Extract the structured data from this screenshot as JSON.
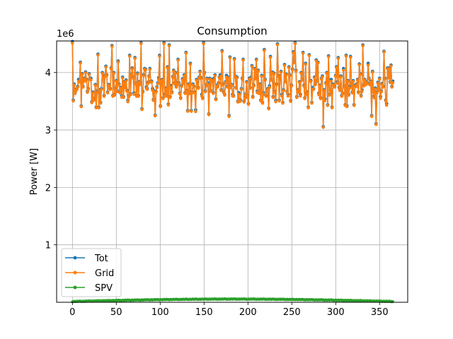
{
  "chart_data": {
    "type": "line",
    "title": "Consumption",
    "xlabel": "",
    "ylabel": "Power [W]",
    "y_offset_label": "1e6",
    "xlim": [
      -18,
      382
    ],
    "ylim": [
      0,
      4550000
    ],
    "x_ticks": [
      0,
      50,
      100,
      150,
      200,
      250,
      300,
      350
    ],
    "y_ticks": [
      1000000,
      2000000,
      3000000,
      4000000
    ],
    "y_tick_labels": [
      "1",
      "2",
      "3",
      "4"
    ],
    "grid": true,
    "legend_position": "lower-left",
    "x_start": 0,
    "x_end": 365,
    "series": [
      {
        "name": "Tot",
        "color": "#1f77b4",
        "values": [
          4540000,
          3520000,
          3800000,
          3650000,
          3700000,
          3720000,
          3760000,
          3880000,
          3850000,
          4180000,
          3420000,
          3980000,
          3760000,
          3900000,
          3880000,
          4010000,
          3880000,
          3670000,
          3720000,
          3980000,
          3900000,
          3900000,
          3490000,
          3660000,
          3530000,
          3540000,
          3790000,
          3400000,
          3680000,
          4320000,
          3400000,
          3700000,
          3480000,
          3720000,
          4000000,
          3930000,
          3600000,
          3950000,
          4110000,
          3960000,
          3660000,
          3790000,
          3780000,
          3720000,
          4080000,
          4470000,
          3600000,
          4000000,
          3620000,
          3720000,
          3860000,
          3680000,
          4200000,
          3800000,
          3660000,
          3740000,
          3600000,
          3920000,
          3580000,
          3840000,
          3750000,
          3870000,
          3690000,
          3520000,
          3590000,
          4300000,
          3630000,
          3970000,
          4080000,
          3920000,
          3650000,
          4260000,
          3820000,
          3600000,
          3990000,
          3600000,
          3840000,
          3820000,
          4520000,
          3370000,
          3670000,
          3960000,
          4070000,
          4060000,
          3750000,
          3720000,
          3830000,
          3940000,
          4070000,
          3850000,
          3850000,
          3720000,
          3530000,
          3680000,
          3260000,
          3670000,
          3750000,
          3820000,
          3910000,
          4300000,
          3420000,
          3860000,
          3880000,
          3560000,
          4520000,
          3620000,
          3730000,
          3600000,
          4100000,
          3450000,
          4480000,
          3580000,
          3770000,
          3660000,
          3930000,
          4040000,
          3820000,
          4000000,
          3760000,
          3820000,
          4230000,
          3820000,
          3640000,
          3560000,
          3770000,
          3890000,
          3840000,
          3960000,
          3650000,
          4350000,
          3690000,
          3340000,
          3800000,
          3660000,
          4160000,
          3340000,
          3660000,
          3800000,
          3760000,
          3660000,
          3350000,
          3880000,
          3820000,
          3740000,
          3920000,
          4020000,
          3910000,
          3620000,
          3560000,
          4520000,
          4000000,
          3680000,
          3780000,
          3900000,
          3820000,
          3280000,
          3900000,
          3690000,
          3880000,
          3860000,
          3650000,
          3900000,
          3960000,
          3540000,
          3780000,
          3760000,
          3820000,
          3920000,
          3960000,
          3700000,
          4380000,
          3800000,
          3660000,
          3620000,
          3840000,
          3950000,
          3760000,
          3920000,
          3250000,
          4270000,
          3750000,
          3790000,
          3620000,
          3600000,
          4240000,
          3940000,
          3740000,
          3920000,
          3500000,
          3650000,
          3510000,
          3520000,
          3720000,
          3900000,
          4230000,
          3500000,
          3580000,
          3620000,
          3840000,
          3580000,
          3460000,
          3900000,
          3740000,
          3920000,
          4120000,
          3580000,
          3780000,
          4070000,
          3900000,
          4230000,
          3680000,
          4040000,
          3650000,
          3800000,
          3520000,
          3950000,
          3480000,
          3650000,
          4400000,
          3880000,
          3600000,
          3700000,
          3720000,
          3380000,
          3770000,
          4280000,
          3880000,
          4010000,
          3580000,
          3990000,
          3670000,
          3520000,
          3800000,
          4500000,
          3950000,
          3520000,
          3900000,
          4020000,
          3620000,
          3480000,
          3700000,
          4140000,
          3850000,
          3970000,
          3670000,
          3620000,
          4100000,
          3960000,
          3510000,
          3780000,
          4060000,
          4360000,
          4200000,
          4520000,
          4040000,
          3580000,
          3700000,
          3670000,
          3840000,
          3620000,
          4000000,
          3880000,
          4350000,
          3780000,
          3560000,
          4160000,
          3640000,
          3660000,
          3400000,
          4310000,
          3860000,
          3860000,
          3480000,
          3740000,
          3720000,
          3920000,
          3800000,
          4220000,
          3860000,
          4180000,
          3640000,
          3780000,
          3560000,
          3900000,
          3940000,
          3060000,
          3700000,
          3540000,
          3820000,
          4000000,
          3440000,
          4290000,
          3620000,
          3680000,
          3880000,
          3400000,
          3800000,
          3790000,
          3760000,
          3950000,
          4100000,
          3840000,
          4260000,
          3740000,
          3700000,
          3940000,
          3600000,
          3640000,
          4070000,
          3760000,
          3440000,
          4300000,
          3420000,
          3860000,
          3620000,
          3760000,
          4280000,
          3820000,
          3660000,
          3860000,
          3440000,
          3780000,
          3780000,
          3800000,
          3880000,
          3660000,
          4150000,
          3980000,
          3600000,
          3700000,
          4480000,
          3780000,
          3880000,
          3800000,
          3840000,
          3820000,
          4160000,
          3900000,
          3800000,
          3850000,
          3250000,
          4020000,
          3680000,
          3590000,
          3730000,
          3110000,
          3660000,
          3830000,
          3700000,
          3900000,
          3580000,
          3680000,
          3810000,
          3760000,
          4370000,
          3900000,
          3520000,
          3460000,
          4080000,
          3920000,
          4080000,
          3840000,
          4130000,
          3760000,
          3850000
        ],
        "marker": "circle"
      },
      {
        "name": "Grid",
        "color": "#ff7f0e",
        "values_note_visible": "nearly identical to Tot",
        "marker": "circle"
      },
      {
        "name": "SPV",
        "color": "#2ca02c",
        "marker": "circle",
        "approx_range": [
          5000,
          60000
        ]
      }
    ]
  }
}
